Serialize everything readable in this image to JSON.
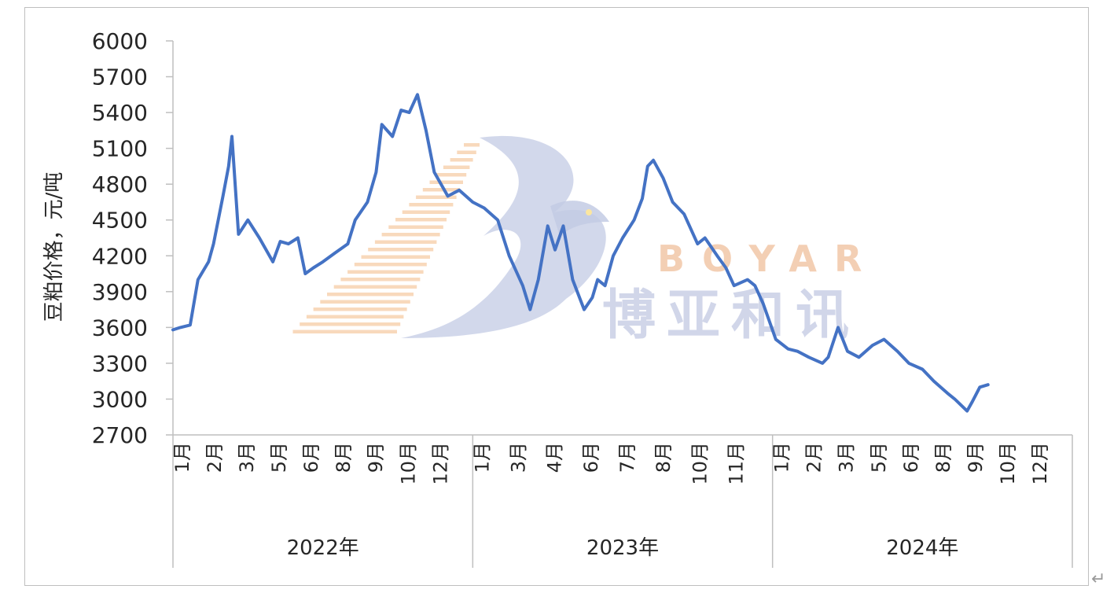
{
  "chart_data": {
    "type": "line",
    "ylabel": "豆粕价格，元/吨",
    "ylim": [
      2700,
      6000
    ],
    "yticks": [
      2700,
      3000,
      3300,
      3600,
      3900,
      4200,
      4500,
      4800,
      5100,
      5400,
      5700,
      6000
    ],
    "grid": false,
    "legend": "none",
    "line_color": "#4472c4",
    "x_groups": [
      {
        "year": "2022年",
        "months": [
          "1月",
          "2月",
          "3月",
          "5月",
          "6月",
          "8月",
          "9月",
          "10月",
          "12月"
        ]
      },
      {
        "year": "2023年",
        "months": [
          "1月",
          "3月",
          "4月",
          "6月",
          "7月",
          "8月",
          "10月",
          "11月"
        ]
      },
      {
        "year": "2024年",
        "months": [
          "1月",
          "2月",
          "3月",
          "5月",
          "6月",
          "8月",
          "9月",
          "10月",
          "12月"
        ]
      }
    ],
    "x": [
      "2022-01-01",
      "2022-01-10",
      "2022-01-22",
      "2022-02-01",
      "2022-02-14",
      "2022-02-20",
      "2022-03-01",
      "2022-03-08",
      "2022-03-12",
      "2022-03-20",
      "2022-04-01",
      "2022-04-15",
      "2022-05-01",
      "2022-05-10",
      "2022-05-20",
      "2022-06-01",
      "2022-06-10",
      "2022-06-20",
      "2022-07-01",
      "2022-07-15",
      "2022-08-01",
      "2022-08-10",
      "2022-08-25",
      "2022-09-05",
      "2022-09-12",
      "2022-09-25",
      "2022-10-05",
      "2022-10-15",
      "2022-10-25",
      "2022-11-05",
      "2022-11-15",
      "2022-12-01",
      "2022-12-15",
      "2023-01-01",
      "2023-01-15",
      "2023-02-01",
      "2023-02-15",
      "2023-03-01",
      "2023-03-10",
      "2023-03-20",
      "2023-04-01",
      "2023-04-10",
      "2023-04-20",
      "2023-05-01",
      "2023-05-15",
      "2023-05-25",
      "2023-06-01",
      "2023-06-10",
      "2023-06-20",
      "2023-07-01",
      "2023-07-15",
      "2023-07-25",
      "2023-08-01",
      "2023-08-08",
      "2023-08-20",
      "2023-09-01",
      "2023-09-15",
      "2023-10-01",
      "2023-10-10",
      "2023-10-25",
      "2023-11-05",
      "2023-11-15",
      "2023-12-01",
      "2023-12-10",
      "2023-12-20",
      "2024-01-05",
      "2024-01-20",
      "2024-02-01",
      "2024-02-15",
      "2024-03-01",
      "2024-03-08",
      "2024-03-20",
      "2024-04-01",
      "2024-04-15",
      "2024-05-01",
      "2024-05-15",
      "2024-06-01",
      "2024-06-15",
      "2024-07-01",
      "2024-07-15",
      "2024-08-01",
      "2024-08-10",
      "2024-08-25",
      "2024-09-01",
      "2024-09-10",
      "2024-09-20"
    ],
    "values": [
      3580,
      3600,
      3620,
      4000,
      4150,
      4300,
      4700,
      4950,
      5200,
      4380,
      4500,
      4350,
      4150,
      4320,
      4300,
      4350,
      4050,
      4100,
      4150,
      4220,
      4300,
      4500,
      4650,
      4900,
      5300,
      5200,
      5420,
      5400,
      5550,
      5250,
      4900,
      4700,
      4750,
      4650,
      4600,
      4500,
      4200,
      3950,
      3750,
      4000,
      4450,
      4250,
      4450,
      4000,
      3750,
      3850,
      4000,
      3950,
      4200,
      4350,
      4500,
      4680,
      4950,
      5000,
      4850,
      4650,
      4550,
      4300,
      4350,
      4200,
      4100,
      3950,
      4000,
      3950,
      3800,
      3500,
      3420,
      3400,
      3350,
      3300,
      3350,
      3600,
      3400,
      3350,
      3450,
      3500,
      3400,
      3300,
      3250,
      3150,
      3050,
      3000,
      2900,
      2980,
      3100,
      3120
    ]
  },
  "watermark": {
    "brand_latin": "BOYAR",
    "brand_cn": "博亚和讯",
    "colors": {
      "letters": "#f2c7a8",
      "cn": "#c9cfe6",
      "logo": "#c3cbe4",
      "stripes": "#f5c9a0"
    }
  },
  "return_mark": "↵"
}
